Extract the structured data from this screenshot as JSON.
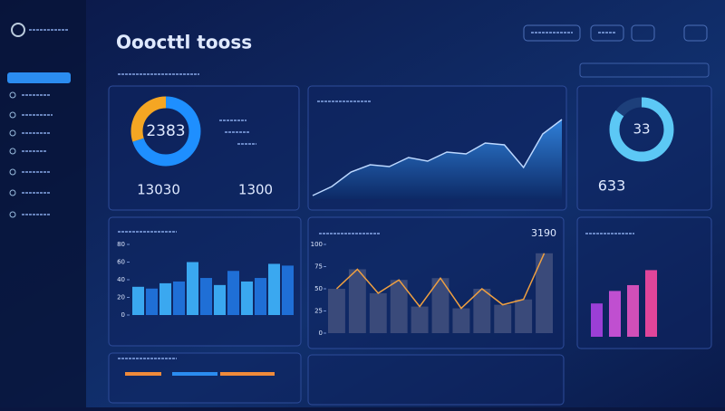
{
  "header": {
    "title": "Ooocttl tooss"
  },
  "kpi": {
    "donut_center": "2383",
    "total_a": "13030",
    "total_b": "1300",
    "ring_center": "33",
    "ring_side": "633",
    "chart_corner": "3190"
  },
  "donut": {
    "values": [
      70,
      30
    ],
    "colors": [
      "#1e8fff",
      "#f5a623"
    ]
  },
  "ring": {
    "values": [
      85,
      15
    ],
    "colors": [
      "#5cc8f5",
      "#1d3f7a"
    ]
  },
  "area": {
    "values": [
      4,
      14,
      30,
      38,
      36,
      46,
      42,
      52,
      50,
      62,
      60,
      35,
      72,
      88
    ],
    "color": "#2a6fc4",
    "ylim": [
      0,
      100
    ]
  },
  "bars": {
    "values": [
      32,
      30,
      36,
      38,
      60,
      42,
      34,
      50,
      38,
      42,
      58,
      56
    ],
    "colors": [
      "#3aa8f0",
      "#1f6fd6"
    ],
    "ylim": [
      0,
      80
    ],
    "yticks": [
      0,
      20,
      40,
      60,
      80
    ]
  },
  "combo": {
    "values": [
      50,
      72,
      45,
      60,
      30,
      62,
      28,
      50,
      32,
      38,
      90
    ],
    "bar_color": "#3a4a7a",
    "line_color": "#f0a040",
    "ylim": [
      0,
      100
    ],
    "yticks": [
      0,
      25,
      50,
      75,
      100
    ]
  },
  "purple": {
    "values": [
      40,
      55,
      62,
      80
    ],
    "colors": [
      "#9b3fd6",
      "#c04fd0",
      "#d04fb8",
      "#e0459a"
    ],
    "ylim": [
      0,
      100
    ]
  },
  "progress": {
    "values": [
      20,
      25,
      30
    ],
    "colors": [
      "#f08a3a",
      "#2b8cf0",
      "#f08a3a"
    ]
  }
}
